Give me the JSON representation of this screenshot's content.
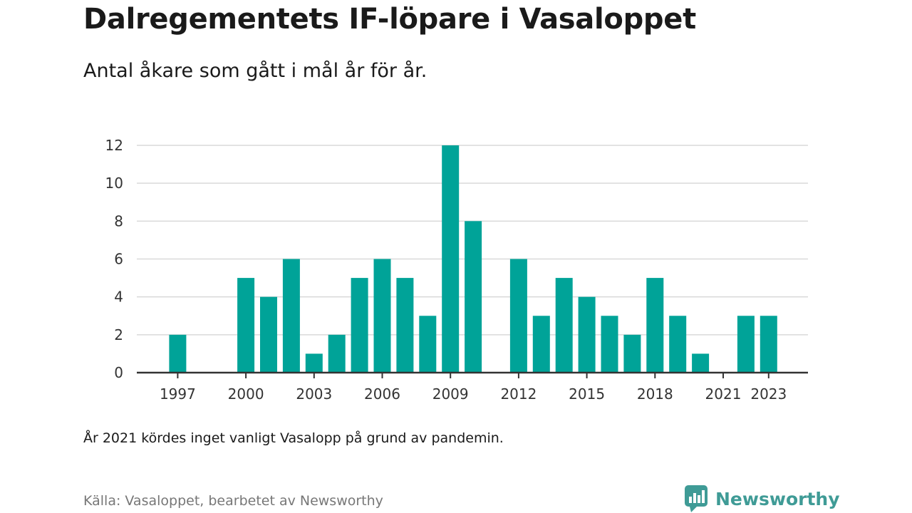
{
  "header": {
    "title": "Dalregementets IF-löpare i Vasaloppet",
    "subtitle": "Antal åkare som gått i mål år för år."
  },
  "footer": {
    "note": "År 2021 kördes inget vanligt Vasalopp på grund av pandemin.",
    "source": "Källa: Vasaloppet, bearbetet av Newsworthy",
    "brand": "Newsworthy",
    "brand_icon": "newsworthy-logo-icon"
  },
  "colors": {
    "bar": "#00a398",
    "grid": "#d9d9d9",
    "axis": "#333333",
    "brand": "#3f9b96"
  },
  "chart_data": {
    "type": "bar",
    "title": "Dalregementets IF-löpare i Vasaloppet",
    "subtitle": "Antal åkare som gått i mål år för år.",
    "xlabel": "",
    "ylabel": "",
    "ylim": [
      0,
      12
    ],
    "yticks": [
      0,
      2,
      4,
      6,
      8,
      10,
      12
    ],
    "xticks": [
      1997,
      2000,
      2003,
      2006,
      2009,
      2012,
      2015,
      2018,
      2021,
      2023
    ],
    "grid": "horizontal",
    "legend": "none",
    "categories": [
      1996,
      1997,
      1998,
      1999,
      2000,
      2001,
      2002,
      2003,
      2004,
      2005,
      2006,
      2007,
      2008,
      2009,
      2010,
      2011,
      2012,
      2013,
      2014,
      2015,
      2016,
      2017,
      2018,
      2019,
      2020,
      2021,
      2022,
      2023,
      2024
    ],
    "values": [
      0,
      2,
      0,
      0,
      5,
      4,
      6,
      1,
      2,
      5,
      6,
      5,
      3,
      12,
      8,
      0,
      6,
      3,
      5,
      4,
      3,
      2,
      5,
      3,
      1,
      0,
      3,
      3,
      0
    ]
  }
}
